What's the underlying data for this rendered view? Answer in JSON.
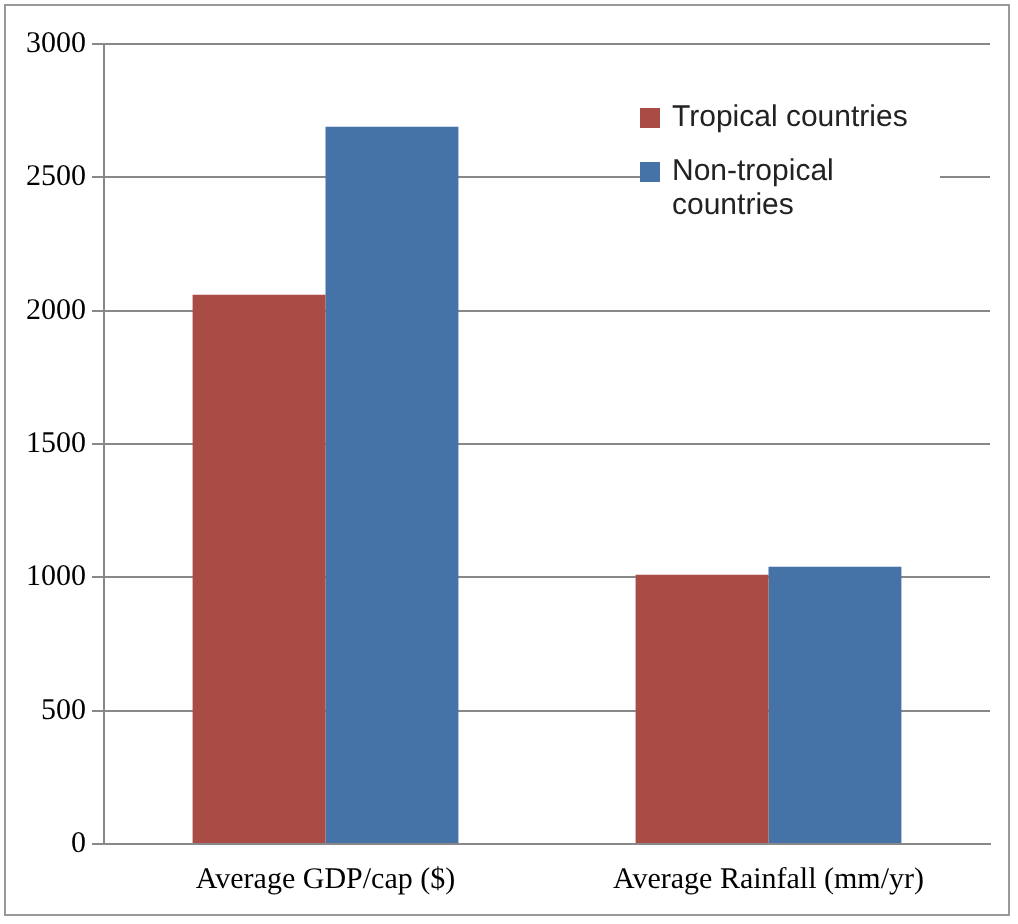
{
  "chart_data": {
    "type": "bar",
    "categories": [
      "Average GDP/cap ($)",
      "Average Rainfall (mm/yr)"
    ],
    "series": [
      {
        "name": "Tropical countries",
        "color": "#a84c45",
        "values": [
          2060,
          1010
        ]
      },
      {
        "name": "Non-tropical countries",
        "color": "#4572a7",
        "values": [
          2690,
          1040
        ]
      }
    ],
    "ylim": [
      0,
      3000
    ],
    "yticks": [
      0,
      500,
      1000,
      1500,
      2000,
      2500,
      3000
    ],
    "grid": "y",
    "legend": "top right"
  }
}
